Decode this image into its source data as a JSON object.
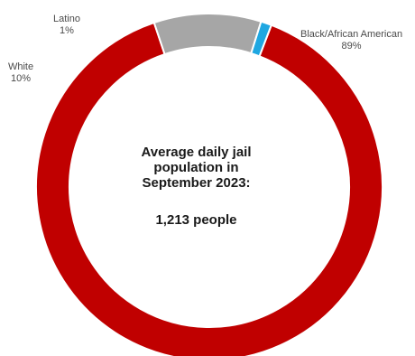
{
  "chart_data": {
    "type": "pie",
    "style": "donut",
    "center_text": {
      "lines": [
        "Average daily jail",
        "population in",
        "September 2023:"
      ],
      "total": "1,213 people"
    },
    "slices": [
      {
        "name": "Black/African American",
        "value": 89,
        "label": "89%",
        "color": "#c00000"
      },
      {
        "name": "White",
        "value": 10,
        "label": "10%",
        "color": "#a6a6a6"
      },
      {
        "name": "Latino",
        "value": 1,
        "label": "1%",
        "color": "#1fa7e1"
      }
    ]
  }
}
